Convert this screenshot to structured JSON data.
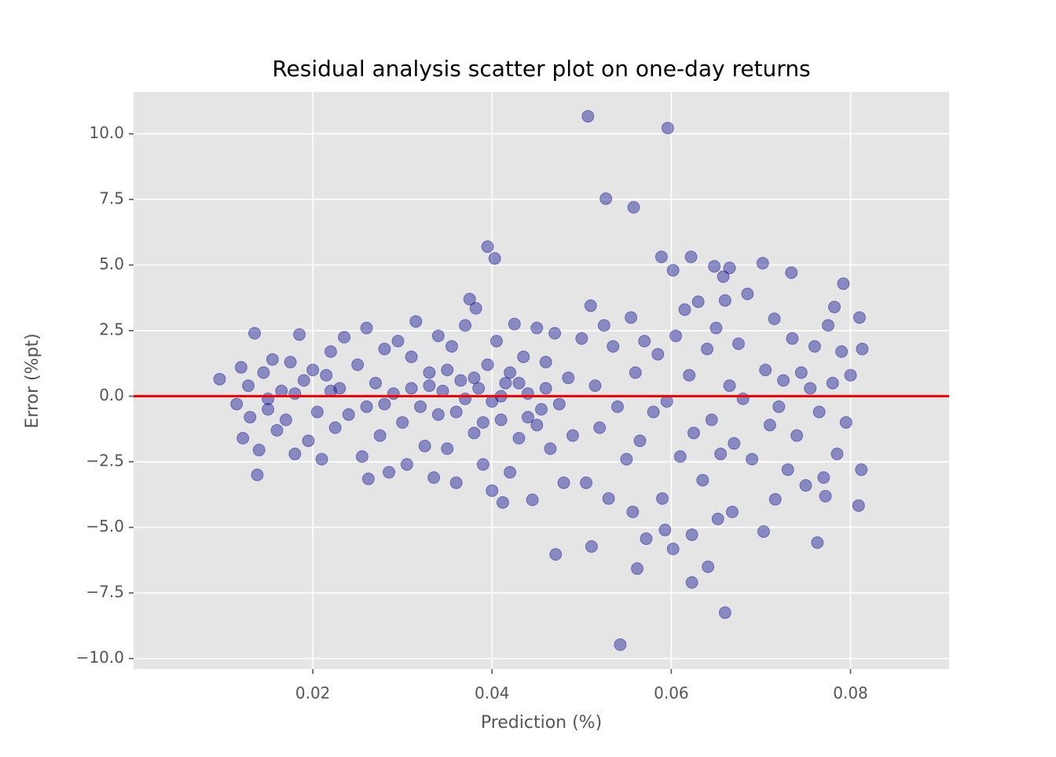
{
  "chart_data": {
    "type": "scatter",
    "title": "Residual analysis scatter plot on one-day returns",
    "x_label": "Prediction (%)",
    "y_label": "Error (%pt)",
    "color": "#00008b",
    "alpha": 0.4,
    "grid": true,
    "xlim": [
      0,
      0.091
    ],
    "ylim": [
      -10.4,
      11.6
    ],
    "xticks": [
      0.02,
      0.04,
      0.06,
      0.08
    ],
    "yticks": [
      {
        "value": 10,
        "label": "10.0"
      },
      {
        "value": 7.5,
        "label": "7.5"
      },
      {
        "value": 5,
        "label": "5.0"
      },
      {
        "value": 2.5,
        "label": "2.5"
      },
      {
        "value": 0,
        "label": "0.0"
      },
      {
        "value": -2.5,
        "label": "−2.5"
      },
      {
        "value": -5,
        "label": "−5.0"
      },
      {
        "value": -7.5,
        "label": "−7.5"
      },
      {
        "value": -10,
        "label": "−10.0"
      }
    ],
    "reference_line": {
      "y": 0,
      "color": "#ff0000"
    },
    "x": [
      0.0507,
      0.0596,
      0.0527,
      0.0558,
      0.0395,
      0.0403,
      0.0589,
      0.0622,
      0.0702,
      0.0734,
      0.0792,
      0.0648,
      0.0665,
      0.0602,
      0.0658,
      0.0543,
      0.066,
      0.0623,
      0.0562,
      0.0641,
      0.0471,
      0.0511,
      0.0602,
      0.0763,
      0.0703,
      0.0572,
      0.0593,
      0.0623,
      0.0557,
      0.0809,
      0.0652,
      0.0668,
      0.0716,
      0.0772,
      0.0138,
      0.0412,
      0.0096,
      0.0115,
      0.012,
      0.0122,
      0.0128,
      0.013,
      0.0135,
      0.014,
      0.0145,
      0.015,
      0.0155,
      0.016,
      0.0165,
      0.017,
      0.0175,
      0.018,
      0.0185,
      0.019,
      0.0195,
      0.02,
      0.0205,
      0.021,
      0.0215,
      0.022,
      0.0225,
      0.023,
      0.0235,
      0.024,
      0.025,
      0.0255,
      0.026,
      0.0262,
      0.027,
      0.0275,
      0.028,
      0.0285,
      0.029,
      0.0295,
      0.03,
      0.0305,
      0.031,
      0.0315,
      0.032,
      0.0325,
      0.033,
      0.0335,
      0.034,
      0.0345,
      0.035,
      0.0355,
      0.036,
      0.0365,
      0.037,
      0.0375,
      0.038,
      0.0382,
      0.0385,
      0.039,
      0.0395,
      0.04,
      0.0405,
      0.041,
      0.0415,
      0.042,
      0.0425,
      0.043,
      0.0435,
      0.044,
      0.0445,
      0.045,
      0.0455,
      0.046,
      0.0465,
      0.047,
      0.0475,
      0.048,
      0.0485,
      0.049,
      0.05,
      0.0505,
      0.051,
      0.0515,
      0.052,
      0.0525,
      0.053,
      0.0535,
      0.054,
      0.055,
      0.0555,
      0.056,
      0.0565,
      0.057,
      0.058,
      0.0585,
      0.059,
      0.0595,
      0.0605,
      0.061,
      0.0615,
      0.062,
      0.0625,
      0.063,
      0.0635,
      0.064,
      0.0645,
      0.065,
      0.0655,
      0.066,
      0.0665,
      0.067,
      0.0675,
      0.068,
      0.0685,
      0.069,
      0.0705,
      0.071,
      0.0715,
      0.072,
      0.0725,
      0.073,
      0.0735,
      0.074,
      0.0745,
      0.075,
      0.0755,
      0.076,
      0.0765,
      0.077,
      0.0775,
      0.078,
      0.0782,
      0.0785,
      0.079,
      0.0795,
      0.08,
      0.081,
      0.0812,
      0.0813,
      0.022,
      0.028,
      0.033,
      0.036,
      0.038,
      0.04,
      0.042,
      0.044,
      0.046,
      0.035,
      0.039,
      0.041,
      0.037,
      0.043,
      0.045,
      0.034,
      0.031,
      0.026,
      0.018,
      0.015
    ],
    "values": [
      10.67,
      10.22,
      7.53,
      7.2,
      5.7,
      5.25,
      5.31,
      5.31,
      5.07,
      4.71,
      4.29,
      4.95,
      4.89,
      4.8,
      4.56,
      -9.47,
      -8.25,
      -7.1,
      -6.57,
      -6.5,
      -6.03,
      -5.73,
      -5.82,
      -5.58,
      -5.16,
      -5.43,
      -5.1,
      -5.28,
      -4.41,
      -4.17,
      -4.68,
      -4.41,
      -3.93,
      -3.81,
      -3.0,
      -4.05,
      0.65,
      -0.3,
      1.1,
      -1.6,
      0.4,
      -0.8,
      2.4,
      -2.05,
      0.9,
      -0.5,
      1.4,
      -1.3,
      0.2,
      -0.9,
      1.3,
      -2.2,
      2.35,
      0.6,
      -1.7,
      1.0,
      -0.6,
      -2.4,
      0.8,
      1.7,
      -1.2,
      0.3,
      2.25,
      -0.7,
      1.2,
      -2.3,
      2.6,
      -3.15,
      0.5,
      -1.5,
      1.8,
      -2.9,
      0.1,
      2.1,
      -1.0,
      -2.6,
      1.5,
      2.85,
      -0.4,
      -1.9,
      0.9,
      -3.1,
      2.3,
      0.2,
      -2.0,
      1.9,
      -3.3,
      0.6,
      2.7,
      3.7,
      -1.4,
      3.35,
      0.3,
      -2.6,
      1.2,
      -3.6,
      2.1,
      -0.9,
      0.5,
      -2.9,
      2.75,
      -1.6,
      1.5,
      0.1,
      -3.95,
      2.6,
      -0.5,
      1.3,
      -2.0,
      2.4,
      -0.3,
      -3.3,
      0.7,
      -1.5,
      2.2,
      -3.3,
      3.45,
      0.4,
      -1.2,
      2.7,
      -3.9,
      1.9,
      -0.4,
      -2.4,
      3.0,
      0.9,
      -1.7,
      2.1,
      -0.6,
      1.6,
      -3.9,
      -0.2,
      2.3,
      -2.3,
      3.3,
      0.8,
      -1.4,
      3.6,
      -3.2,
      1.8,
      -0.9,
      2.6,
      -2.2,
      3.65,
      0.4,
      -1.8,
      2.0,
      -0.1,
      3.9,
      -2.4,
      1.0,
      -1.1,
      2.95,
      -0.4,
      0.6,
      -2.8,
      2.2,
      -1.5,
      0.9,
      -3.4,
      0.3,
      1.9,
      -0.6,
      -3.1,
      2.7,
      0.5,
      3.4,
      -2.2,
      1.7,
      -1.0,
      0.8,
      3.0,
      -2.8,
      1.8,
      0.2,
      -0.3,
      0.4,
      -0.6,
      0.7,
      -0.2,
      0.9,
      -0.8,
      0.3,
      1.0,
      -1.0,
      0.0,
      -0.1,
      0.5,
      -1.1,
      -0.7,
      0.3,
      -0.4,
      0.1,
      -0.1
    ]
  }
}
